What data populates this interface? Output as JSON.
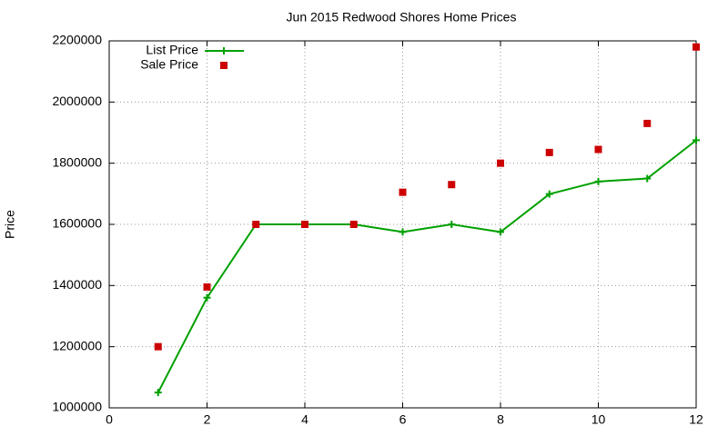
{
  "chart_data": {
    "type": "line",
    "title": "Jun 2015 Redwood Shores Home Prices",
    "y_label": "Price",
    "x": [
      1,
      2,
      3,
      4,
      5,
      6,
      7,
      8,
      9,
      10,
      11,
      12
    ],
    "series": [
      {
        "name": "List Price",
        "color": "#00a000",
        "line": true,
        "marker": "plus",
        "values": [
          1050000,
          1360000,
          1600000,
          1600000,
          1600000,
          1575000,
          1600000,
          1575000,
          1699000,
          1740000,
          1750000,
          1875000
        ]
      },
      {
        "name": "Sale Price",
        "color": "#cc0000",
        "line": false,
        "marker": "square",
        "values": [
          1200000,
          1395000,
          1600000,
          1600000,
          1600000,
          1705000,
          1730000,
          1800000,
          1835000,
          1845000,
          1930000,
          2180000
        ]
      }
    ],
    "xlim": [
      0,
      12
    ],
    "xticks": [
      0,
      2,
      4,
      6,
      8,
      10,
      12
    ],
    "ylim": [
      1000000,
      2200000
    ],
    "yticks": [
      1000000,
      1200000,
      1400000,
      1600000,
      1800000,
      2000000,
      2200000
    ],
    "grid": true,
    "legend": "top-left"
  }
}
